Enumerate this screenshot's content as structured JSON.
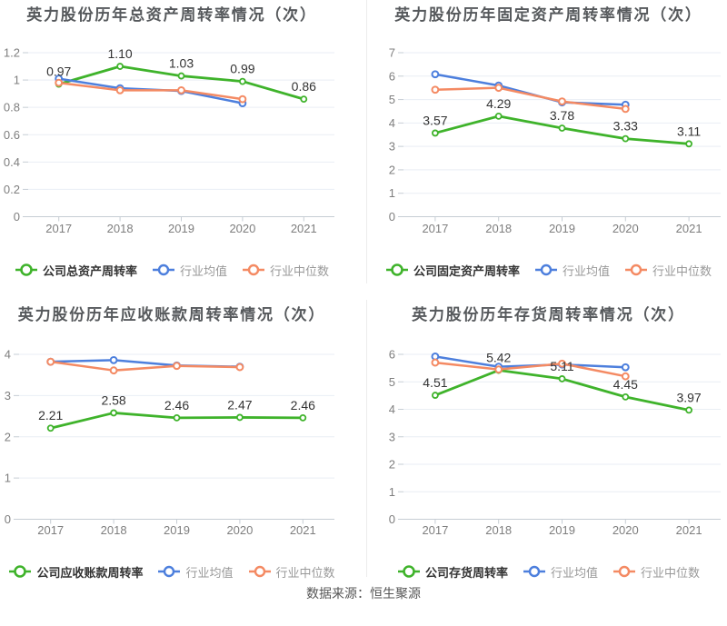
{
  "palette": {
    "company": "#3fb32b",
    "industry_mean": "#4d7fdd",
    "industry_median": "#f48a63",
    "grid": "#e9eef4",
    "axis": "#c6cdd4",
    "tick_text": "#7e7e7e",
    "data_label": "#333333",
    "title_text": "#56595c",
    "divider": "#ececec"
  },
  "footer": {
    "source": "数据来源：恒生聚源"
  },
  "chart_data": [
    {
      "type": "line",
      "title": "英力股份历年总资产周转率情况（次）",
      "categories": [
        "2017",
        "2018",
        "2019",
        "2020",
        "2021"
      ],
      "ymax": 1.2,
      "yticks": [
        0,
        0.2,
        0.4,
        0.6,
        0.8,
        1,
        1.2
      ],
      "grid": true,
      "legend_position": "bottom",
      "series": [
        {
          "name": "公司总资产周转率",
          "role": "company",
          "values": [
            0.97,
            1.1,
            1.03,
            0.99,
            0.86
          ],
          "labels": [
            "0.97",
            "1.10",
            "1.03",
            "0.99",
            "0.86"
          ]
        },
        {
          "name": "行业均值",
          "role": "industry_mean",
          "values": [
            1.01,
            0.94,
            0.92,
            0.83,
            null
          ]
        },
        {
          "name": "行业中位数",
          "role": "industry_median",
          "values": [
            0.98,
            0.925,
            0.925,
            0.86,
            null
          ]
        }
      ]
    },
    {
      "type": "line",
      "title": "英力股份历年固定资产周转率情况（次）",
      "categories": [
        "2017",
        "2018",
        "2019",
        "2020",
        "2021"
      ],
      "ymax": 7,
      "yticks": [
        0,
        1,
        2,
        3,
        4,
        5,
        6,
        7
      ],
      "grid": true,
      "legend_position": "bottom",
      "series": [
        {
          "name": "公司固定资产周转率",
          "role": "company",
          "values": [
            3.57,
            4.29,
            3.78,
            3.33,
            3.11
          ],
          "labels": [
            "3.57",
            "4.29",
            "3.78",
            "3.33",
            "3.11"
          ]
        },
        {
          "name": "行业均值",
          "role": "industry_mean",
          "values": [
            6.08,
            5.6,
            4.88,
            4.78,
            null
          ]
        },
        {
          "name": "行业中位数",
          "role": "industry_median",
          "values": [
            5.42,
            5.5,
            4.92,
            4.6,
            null
          ]
        }
      ]
    },
    {
      "type": "line",
      "title": "英力股份历年应收账款周转率情况（次）",
      "categories": [
        "2017",
        "2018",
        "2019",
        "2020",
        "2021"
      ],
      "ymax": 4,
      "yticks": [
        0,
        1,
        2,
        3,
        4
      ],
      "grid": true,
      "legend_position": "bottom",
      "series": [
        {
          "name": "公司应收账款周转率",
          "role": "company",
          "values": [
            2.21,
            2.58,
            2.46,
            2.47,
            2.46
          ],
          "labels": [
            "2.21",
            "2.58",
            "2.46",
            "2.47",
            "2.46"
          ]
        },
        {
          "name": "行业均值",
          "role": "industry_mean",
          "values": [
            3.82,
            3.86,
            3.73,
            3.7,
            null
          ]
        },
        {
          "name": "行业中位数",
          "role": "industry_median",
          "values": [
            3.82,
            3.61,
            3.72,
            3.69,
            null
          ]
        }
      ]
    },
    {
      "type": "line",
      "title": "英力股份历年存货周转率情况（次）",
      "categories": [
        "2017",
        "2018",
        "2019",
        "2020",
        "2021"
      ],
      "ymax": 6,
      "yticks": [
        0,
        1,
        2,
        3,
        4,
        5,
        6
      ],
      "grid": true,
      "legend_position": "bottom",
      "series": [
        {
          "name": "公司存货周转率",
          "role": "company",
          "values": [
            4.51,
            5.42,
            5.11,
            4.45,
            3.97
          ],
          "labels": [
            "4.51",
            "5.42",
            "5.11",
            "4.45",
            "3.97"
          ]
        },
        {
          "name": "行业均值",
          "role": "industry_mean",
          "values": [
            5.92,
            5.55,
            5.63,
            5.53,
            null
          ]
        },
        {
          "name": "行业中位数",
          "role": "industry_median",
          "values": [
            5.7,
            5.45,
            5.66,
            5.2,
            null
          ]
        }
      ]
    }
  ]
}
